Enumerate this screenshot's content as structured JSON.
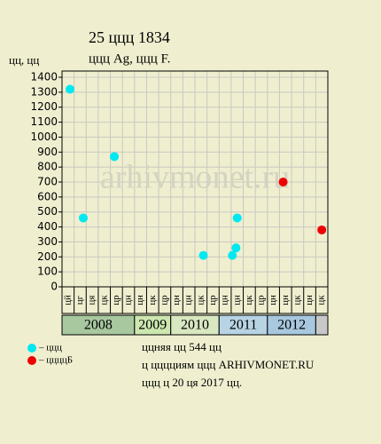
{
  "chart_data": {
    "type": "scatter",
    "title": "25 ццц 1834",
    "subtitle": "ццц Ag, ццц F.",
    "y_label": "цц, цц",
    "watermark": "arhivmonet.ru",
    "xlim": [
      0,
      22
    ],
    "ylim": [
      0,
      1400
    ],
    "yticks": [
      0,
      100,
      200,
      300,
      400,
      500,
      600,
      700,
      800,
      900,
      1000,
      1100,
      1200,
      1300,
      1400
    ],
    "grid": true,
    "columns": [
      "цй",
      "цг",
      "ця",
      "цк",
      "цр",
      "цн",
      "цн",
      "цк",
      "цр",
      "цн",
      "цн",
      "цк",
      "цр",
      "цн",
      "цн",
      "цк",
      "цр",
      "цн",
      "цн",
      "цк",
      "цн",
      "цк"
    ],
    "years": [
      "2008",
      "2009",
      "2010",
      "2011",
      "2012"
    ],
    "series": [
      {
        "name": "– ццц",
        "color": "#00e8f0",
        "x": [
          0.66,
          1.76,
          4.33,
          11.7,
          14.1,
          14.4,
          14.5
        ],
        "values": [
          1320,
          460,
          870,
          210,
          210,
          260,
          460
        ]
      },
      {
        "name": "– ццццБ",
        "color": "#ee0000",
        "x": [
          18.3,
          21.5
        ],
        "values": [
          700,
          380
        ]
      }
    ],
    "notes": [
      "ццняя цц 544 цц",
      "ц цццциям ццц ARHIVMONET.RU",
      "ццц ц 20 ця 2017 цц."
    ]
  }
}
